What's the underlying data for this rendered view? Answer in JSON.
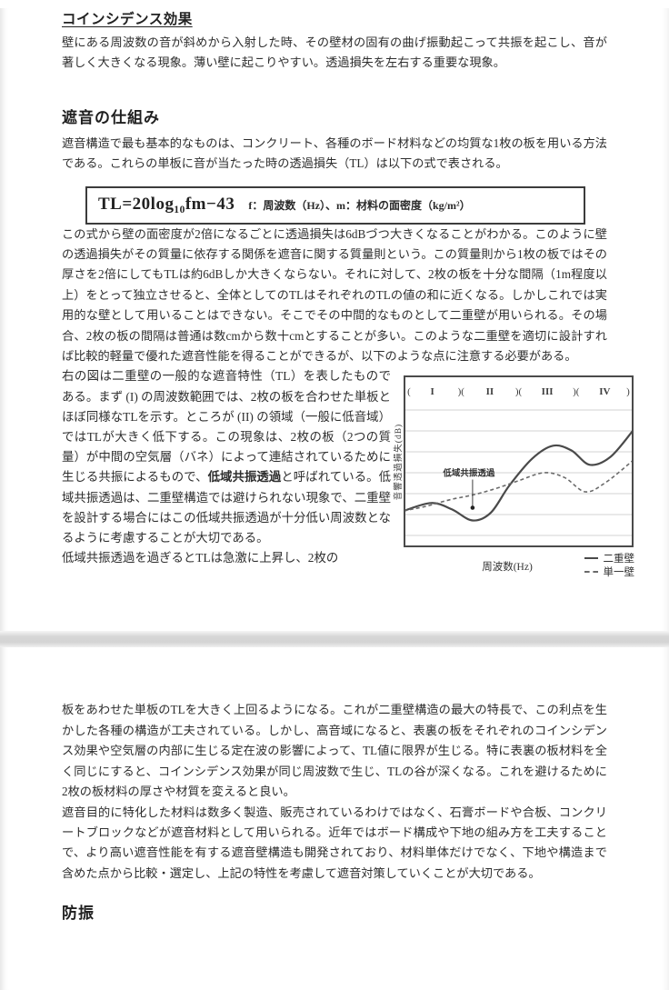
{
  "page1": {
    "h_coincidence": "コインシデンス効果",
    "p_coincidence": "壁にある周波数の音が斜めから入射した時、その壁材の固有の曲げ振動起こって共振を起こし、音が著しく大きくなる現象。薄い壁に起こりやすい。透過損失を左右する重要な現象。",
    "h_mechanism": "遮音の仕組み",
    "p_mechanism": "遮音構造で最も基本的なものは、コンクリート、各種のボード材料などの均質な1枚の板を用いる方法である。これらの単板に音が当たった時の透過損失（TL）は以下の式で表される。",
    "formula": "TL=20log₁₀fm−43",
    "formula_note": "f：周波数（Hz）、m：材料の面密度（kg/m²）",
    "p_mass_law": "この式から壁の面密度が2倍になるごとに透過損失は6dBづつ大きくなることがわかる。このように壁の透過損失がその質量に依存する関係を遮音に関する質量則という。この質量則から1枚の板ではその厚さを2倍にしてもTLは約6dBしか大きくならない。それに対して、2枚の板を十分な間隔（1m程度以上）をとって独立させると、全体としてのTLはそれぞれのTLの値の和に近くなる。しかしこれでは実用的な壁として用いることはできない。そこでその中間的なものとして二重壁が用いられる。その場合、2枚の板の間隔は普通は数cmから数十cmとすることが多い。このような二重壁を適切に設計すれば比較的軽量で優れた遮音性能を得ることができるが、以下のような点に注意する必要がある。",
    "left_col": {
      "part_a": "右の図は二重壁の一般的な遮音特性（TL）を表したものである。まず (I) の周波数範囲では、2枚の板を合わせた単板とほぼ同様なTLを示す。ところが (II) の領域（一般に低音域）ではTLが大きく低下する。この現象は、2枚の板（2つの質量）が中間の空気層（バネ）によって連結されているために生じる共振によるもので、",
      "part_b_bold": "低域共振透過",
      "part_c": "と呼ばれている。低域共振透過は、二重壁構造では避けられない現象で、二重壁を設計する場合にはこの低域共振透過が十分低い周波数となるように考慮することが大切である。",
      "part_d": "低域共振透過を過ぎるとTLは急激に上昇し、2枚の"
    }
  },
  "chart_data": {
    "type": "line",
    "title": "二重壁の一般的な遮音特性（TL）",
    "xlabel": "周波数(Hz)",
    "ylabel": "音響透過損失(dB)",
    "regions": [
      "I",
      "II",
      "III",
      "IV"
    ],
    "grid": "horizontal gridlines, no tick values shown (qualitative axes)",
    "legend_position": "bottom-right",
    "annotation": {
      "label": "低域共振透過",
      "x": 30,
      "y_label": 42,
      "y_point": 22
    },
    "axis_units": "x: 0–100 relative log-frequency, y: 0–100 relative transmission loss",
    "series": [
      {
        "name": "二重壁",
        "style": "solid",
        "points": [
          [
            0,
            20
          ],
          [
            12,
            25
          ],
          [
            21,
            21
          ],
          [
            30,
            14
          ],
          [
            38,
            19
          ],
          [
            46,
            36
          ],
          [
            56,
            53
          ],
          [
            65,
            61
          ],
          [
            73,
            58
          ],
          [
            81,
            49
          ],
          [
            90,
            54
          ],
          [
            100,
            71
          ]
        ]
      },
      {
        "name": "単一壁",
        "style": "dashed",
        "points": [
          [
            0,
            20
          ],
          [
            10,
            23
          ],
          [
            20,
            27
          ],
          [
            30,
            30
          ],
          [
            40,
            34
          ],
          [
            50,
            39
          ],
          [
            61,
            44
          ],
          [
            70,
            41
          ],
          [
            79,
            32
          ],
          [
            88,
            38
          ],
          [
            100,
            52
          ]
        ]
      }
    ]
  },
  "page2": {
    "p_advantage": "板をあわせた単板のTLを大きく上回るようになる。これが二重壁構造の最大の特長で、この利点を生かした各種の構造が工夫されている。しかし、高音域になると、表裏の板をそれぞれのコインシデンス効果や空気層の内部に生じる定在波の影響によって、TL値に限界が生じる。特に表裏の板材料を全く同じにすると、コインシデンス効果が同じ周波数で生じ、TLの谷が深くなる。これを避けるために2枚の板材料の厚さや材質を変えると良い。",
    "p_materials": "遮音目的に特化した材料は数多く製造、販売されているわけではなく、石膏ボードや合板、コンクリートブロックなどが遮音材料として用いられる。近年ではボード構成や下地の組み方を工夫することで、より高い遮音性能を有する遮音壁構造も開発されており、材料単体だけでなく、下地や構造まで含めた点から比較・選定し、上記の特性を考慮して遮音対策していくことが大切である。",
    "h_vibration": "防振"
  },
  "colors": {
    "text": "#2e2e2e",
    "separator": "#d5d5d5",
    "chart_solid_line": "#4a4a4a",
    "chart_dashed_line": "#6a6a6a",
    "gridline": "#c4c4c4"
  }
}
